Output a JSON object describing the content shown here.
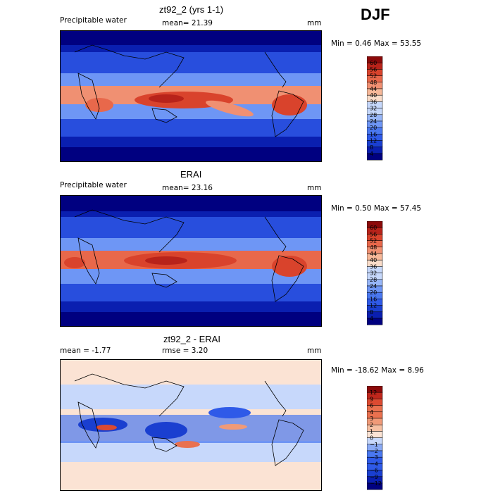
{
  "season": "DJF",
  "panels": [
    {
      "title": "zt92_2 (yrs 1-1)",
      "left_label": "Precipitable water",
      "center_label": "mean=  21.39",
      "right_label": "mm",
      "minmax": "Min =   0.46 Max =  53.55"
    },
    {
      "title": "ERAI",
      "left_label": "Precipitable water",
      "center_label": "mean=  23.16",
      "right_label": "mm",
      "minmax": "Min =   0.50 Max =  57.45"
    },
    {
      "title": "zt92_2 - ERAI",
      "left_label": "mean =  -1.77",
      "center_label": "rmse =   3.20",
      "right_label": "mm",
      "minmax": "Min = -18.62 Max =   8.96"
    }
  ],
  "chart_data": [
    {
      "type": "heatmap",
      "title": "zt92_2 (yrs 1-1)",
      "variable": "Precipitable water",
      "units": "mm",
      "mean": 21.39,
      "min": 0.46,
      "max": 53.55,
      "colorbar_levels": [
        4,
        8,
        12,
        16,
        20,
        24,
        28,
        32,
        36,
        40,
        44,
        48,
        52,
        56,
        60
      ],
      "colorbar_labels": [
        "60",
        "56",
        "52",
        "48",
        "44",
        "40",
        "36",
        "32",
        "28",
        "24",
        "20",
        "16",
        "12",
        "8",
        "4"
      ]
    },
    {
      "type": "heatmap",
      "title": "ERAI",
      "variable": "Precipitable water",
      "units": "mm",
      "mean": 23.16,
      "min": 0.5,
      "max": 57.45,
      "colorbar_levels": [
        4,
        8,
        12,
        16,
        20,
        24,
        28,
        32,
        36,
        40,
        44,
        48,
        52,
        56,
        60
      ],
      "colorbar_labels": [
        "60",
        "56",
        "52",
        "48",
        "44",
        "40",
        "36",
        "32",
        "28",
        "24",
        "20",
        "16",
        "12",
        "8",
        "4"
      ]
    },
    {
      "type": "heatmap",
      "title": "zt92_2 - ERAI",
      "units": "mm",
      "mean": -1.77,
      "rmse": 3.2,
      "min": -18.62,
      "max": 8.96,
      "colorbar_levels": [
        -12,
        -9,
        -6,
        -4,
        -3,
        -2,
        -1,
        0,
        1,
        2,
        3,
        4,
        6,
        9,
        12
      ],
      "colorbar_labels": [
        "12",
        "9",
        "6",
        "4",
        "3",
        "2",
        "1",
        "0",
        "−1",
        "−2",
        "−3",
        "−4",
        "−6",
        "−9",
        "−12"
      ]
    }
  ],
  "colors": {
    "wet_scale": [
      "#000080",
      "#0a1fb0",
      "#1a3fd0",
      "#2f5ae8",
      "#4a78f0",
      "#6e96f5",
      "#97b6f8",
      "#c6d8fb",
      "#f9dcc9",
      "#f6b899",
      "#f09072",
      "#e8684b",
      "#d9432c",
      "#b8231a",
      "#8b0a0a"
    ],
    "diff_scale": [
      "#000080",
      "#0a1fb0",
      "#1a3fd0",
      "#2f5ae8",
      "#4a78f0",
      "#8aaaf5",
      "#c7d8fb",
      "#fbe3d4",
      "#f6c0a3",
      "#f09a78",
      "#e9714f",
      "#dc4a31",
      "#bf271c",
      "#8b0a0a"
    ]
  }
}
